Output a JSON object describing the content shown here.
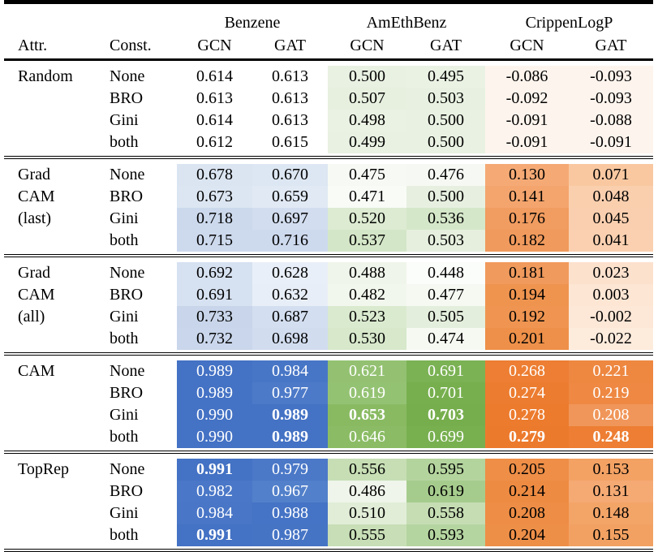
{
  "meta": {
    "accent_colors": {
      "blue": "#4472c4",
      "green": "#70ad47",
      "orange": "#ed7d31"
    }
  },
  "header": {
    "attr": "Attr.",
    "const": "Const.",
    "datasets": [
      "Benzene",
      "AmEthBenz",
      "CrippenLogP"
    ],
    "models": [
      "GCN",
      "GAT"
    ]
  },
  "groups": [
    {
      "attr_lines": [
        "Random",
        "",
        "",
        ""
      ],
      "rows": [
        {
          "const": "None",
          "cells": [
            {
              "v": "0.614",
              "bg": "#ffffff"
            },
            {
              "v": "0.613",
              "bg": "#ffffff"
            },
            {
              "v": "0.500",
              "bg": "#e9f1e2"
            },
            {
              "v": "0.495",
              "bg": "#eaf2e4"
            },
            {
              "v": "-0.086",
              "bg": "#fdf4ed"
            },
            {
              "v": "-0.093",
              "bg": "#fdf4ed"
            }
          ]
        },
        {
          "const": "BRO",
          "cells": [
            {
              "v": "0.613",
              "bg": "#ffffff"
            },
            {
              "v": "0.613",
              "bg": "#ffffff"
            },
            {
              "v": "0.507",
              "bg": "#e7f0df"
            },
            {
              "v": "0.503",
              "bg": "#e8f1e1"
            },
            {
              "v": "-0.092",
              "bg": "#fdf4ed"
            },
            {
              "v": "-0.093",
              "bg": "#fdf4ed"
            }
          ]
        },
        {
          "const": "Gini",
          "cells": [
            {
              "v": "0.614",
              "bg": "#ffffff"
            },
            {
              "v": "0.613",
              "bg": "#ffffff"
            },
            {
              "v": "0.498",
              "bg": "#eaf2e3"
            },
            {
              "v": "0.500",
              "bg": "#e9f1e2"
            },
            {
              "v": "-0.091",
              "bg": "#fdf4ed"
            },
            {
              "v": "-0.088",
              "bg": "#fdf4ed"
            }
          ]
        },
        {
          "const": "both",
          "cells": [
            {
              "v": "0.612",
              "bg": "#ffffff"
            },
            {
              "v": "0.615",
              "bg": "#ffffff"
            },
            {
              "v": "0.499",
              "bg": "#e9f1e3"
            },
            {
              "v": "0.500",
              "bg": "#e9f1e2"
            },
            {
              "v": "-0.091",
              "bg": "#fdf4ed"
            },
            {
              "v": "-0.091",
              "bg": "#fdf4ed"
            }
          ]
        }
      ]
    },
    {
      "attr_lines": [
        "Grad",
        "CAM",
        "(last)",
        ""
      ],
      "rows": [
        {
          "const": "None",
          "cells": [
            {
              "v": "0.678",
              "bg": "#dbe5f2"
            },
            {
              "v": "0.670",
              "bg": "#dde7f3"
            },
            {
              "v": "0.475",
              "bg": "#f7faf4"
            },
            {
              "v": "0.476",
              "bg": "#f6f9f3"
            },
            {
              "v": "0.130",
              "bg": "#f5aa75"
            },
            {
              "v": "0.071",
              "bg": "#f9c8a1"
            }
          ]
        },
        {
          "const": "BRO",
          "cells": [
            {
              "v": "0.673",
              "bg": "#dce6f2"
            },
            {
              "v": "0.659",
              "bg": "#e0e9f4"
            },
            {
              "v": "0.471",
              "bg": "#f8fbf6"
            },
            {
              "v": "0.500",
              "bg": "#e7f0e0"
            },
            {
              "v": "0.141",
              "bg": "#f4a56d"
            },
            {
              "v": "0.048",
              "bg": "#facfae"
            }
          ]
        },
        {
          "const": "Gini",
          "cells": [
            {
              "v": "0.718",
              "bg": "#ccd9ed"
            },
            {
              "v": "0.697",
              "bg": "#d2ddef"
            },
            {
              "v": "0.520",
              "bg": "#dcebd1"
            },
            {
              "v": "0.536",
              "bg": "#d5e7c9"
            },
            {
              "v": "0.176",
              "bg": "#f19c60"
            },
            {
              "v": "0.045",
              "bg": "#facfaf"
            }
          ]
        },
        {
          "const": "both",
          "cells": [
            {
              "v": "0.715",
              "bg": "#cdd9ed"
            },
            {
              "v": "0.716",
              "bg": "#cdd9ed"
            },
            {
              "v": "0.537",
              "bg": "#d4e6c8"
            },
            {
              "v": "0.503",
              "bg": "#e6efde"
            },
            {
              "v": "0.182",
              "bg": "#f09a5d"
            },
            {
              "v": "0.041",
              "bg": "#fad0b0"
            }
          ]
        }
      ]
    },
    {
      "attr_lines": [
        "Grad",
        "CAM",
        "(all)",
        ""
      ],
      "rows": [
        {
          "const": "None",
          "cells": [
            {
              "v": "0.692",
              "bg": "#d6e1f1"
            },
            {
              "v": "0.628",
              "bg": "#e9eff8"
            },
            {
              "v": "0.488",
              "bg": "#eff5ea"
            },
            {
              "v": "0.448",
              "bg": "#fbfdfa"
            },
            {
              "v": "0.181",
              "bg": "#f09a5d"
            },
            {
              "v": "0.023",
              "bg": "#fce1cd"
            }
          ]
        },
        {
          "const": "BRO",
          "cells": [
            {
              "v": "0.691",
              "bg": "#d6e1f1"
            },
            {
              "v": "0.632",
              "bg": "#e8eef7"
            },
            {
              "v": "0.482",
              "bg": "#f2f7ed"
            },
            {
              "v": "0.477",
              "bg": "#f5f9f2"
            },
            {
              "v": "0.194",
              "bg": "#ef944f"
            },
            {
              "v": "0.003",
              "bg": "#fde6d4"
            }
          ]
        },
        {
          "const": "Gini",
          "cells": [
            {
              "v": "0.733",
              "bg": "#c8d5ea"
            },
            {
              "v": "0.687",
              "bg": "#d3def0"
            },
            {
              "v": "0.523",
              "bg": "#daeacf"
            },
            {
              "v": "0.505",
              "bg": "#e4eedc"
            },
            {
              "v": "0.192",
              "bg": "#ef9551"
            },
            {
              "v": "-0.002",
              "bg": "#fde7d6"
            }
          ]
        },
        {
          "const": "both",
          "cells": [
            {
              "v": "0.732",
              "bg": "#c9d6eb"
            },
            {
              "v": "0.698",
              "bg": "#d1dcef"
            },
            {
              "v": "0.530",
              "bg": "#d7e8cb"
            },
            {
              "v": "0.474",
              "bg": "#f6f9f2"
            },
            {
              "v": "0.201",
              "bg": "#ee9049"
            },
            {
              "v": "-0.022",
              "bg": "#fdebdc"
            }
          ]
        }
      ]
    },
    {
      "attr_lines": [
        "CAM",
        "",
        "",
        ""
      ],
      "rows": [
        {
          "const": "None",
          "cells": [
            {
              "v": "0.989",
              "bg": "#4472c4",
              "fg": "#ffffff"
            },
            {
              "v": "0.984",
              "bg": "#4876c6",
              "fg": "#ffffff"
            },
            {
              "v": "0.621",
              "bg": "#93c171",
              "fg": "#ffffff"
            },
            {
              "v": "0.691",
              "bg": "#7bb254",
              "fg": "#ffffff"
            },
            {
              "v": "0.268",
              "bg": "#ed7e33",
              "fg": "#ffffff"
            },
            {
              "v": "0.221",
              "bg": "#ee8740",
              "fg": "#ffffff"
            }
          ]
        },
        {
          "const": "BRO",
          "cells": [
            {
              "v": "0.989",
              "bg": "#4472c4",
              "fg": "#ffffff"
            },
            {
              "v": "0.977",
              "bg": "#4d7ac8",
              "fg": "#ffffff"
            },
            {
              "v": "0.619",
              "bg": "#94c273",
              "fg": "#ffffff"
            },
            {
              "v": "0.701",
              "bg": "#77af4e",
              "fg": "#ffffff"
            },
            {
              "v": "0.274",
              "bg": "#ec7c30",
              "fg": "#ffffff"
            },
            {
              "v": "0.219",
              "bg": "#ee8842",
              "fg": "#ffffff"
            }
          ]
        },
        {
          "const": "Gini",
          "cells": [
            {
              "v": "0.990",
              "bg": "#4472c4",
              "fg": "#ffffff"
            },
            {
              "v": "0.989",
              "bg": "#4472c4",
              "fg": "#ffffff",
              "bold": true
            },
            {
              "v": "0.653",
              "bg": "#89ba62",
              "fg": "#ffffff",
              "bold": true
            },
            {
              "v": "0.703",
              "bg": "#76ae4d",
              "fg": "#ffffff",
              "bold": true
            },
            {
              "v": "0.278",
              "bg": "#ec7b2e",
              "fg": "#ffffff"
            },
            {
              "v": "0.208",
              "bg": "#f0965a",
              "fg": "#ffffff"
            }
          ]
        },
        {
          "const": "both",
          "cells": [
            {
              "v": "0.990",
              "bg": "#4472c4",
              "fg": "#ffffff"
            },
            {
              "v": "0.989",
              "bg": "#4472c4",
              "fg": "#ffffff",
              "bold": true
            },
            {
              "v": "0.646",
              "bg": "#8bbc65",
              "fg": "#ffffff"
            },
            {
              "v": "0.699",
              "bg": "#78b050",
              "fg": "#ffffff"
            },
            {
              "v": "0.279",
              "bg": "#ec7a2d",
              "fg": "#ffffff",
              "bold": true
            },
            {
              "v": "0.248",
              "bg": "#ed7e33",
              "fg": "#ffffff",
              "bold": true
            }
          ]
        }
      ]
    },
    {
      "attr_lines": [
        "TopRep",
        "",
        "",
        ""
      ],
      "rows": [
        {
          "const": "None",
          "cells": [
            {
              "v": "0.991",
              "bg": "#4472c4",
              "fg": "#ffffff",
              "bold": true
            },
            {
              "v": "0.979",
              "bg": "#4b78c7",
              "fg": "#ffffff"
            },
            {
              "v": "0.556",
              "bg": "#c7deb5"
            },
            {
              "v": "0.595",
              "bg": "#b4d49e"
            },
            {
              "v": "0.205",
              "bg": "#ee8e47"
            },
            {
              "v": "0.153",
              "bg": "#f3a264"
            }
          ]
        },
        {
          "const": "BRO",
          "cells": [
            {
              "v": "0.982",
              "bg": "#4a77c7",
              "fg": "#ffffff"
            },
            {
              "v": "0.967",
              "bg": "#5280ca",
              "fg": "#ffffff"
            },
            {
              "v": "0.486",
              "bg": "#eff5ea"
            },
            {
              "v": "0.619",
              "bg": "#a6cc8d"
            },
            {
              "v": "0.214",
              "bg": "#ee8b42"
            },
            {
              "v": "0.131",
              "bg": "#f5aa74"
            }
          ]
        },
        {
          "const": "Gini",
          "cells": [
            {
              "v": "0.984",
              "bg": "#4976c6",
              "fg": "#ffffff"
            },
            {
              "v": "0.988",
              "bg": "#4573c5",
              "fg": "#ffffff"
            },
            {
              "v": "0.510",
              "bg": "#e1edd7"
            },
            {
              "v": "0.558",
              "bg": "#c6ddb4"
            },
            {
              "v": "0.208",
              "bg": "#ee8d45"
            },
            {
              "v": "0.148",
              "bg": "#f3a467"
            }
          ]
        },
        {
          "const": "both",
          "cells": [
            {
              "v": "0.991",
              "bg": "#4472c4",
              "fg": "#ffffff",
              "bold": true
            },
            {
              "v": "0.987",
              "bg": "#4674c5",
              "fg": "#ffffff"
            },
            {
              "v": "0.555",
              "bg": "#c7deb6"
            },
            {
              "v": "0.593",
              "bg": "#b5d5a0"
            },
            {
              "v": "0.204",
              "bg": "#ee8f48"
            },
            {
              "v": "0.155",
              "bg": "#f2a162"
            }
          ]
        }
      ]
    }
  ]
}
